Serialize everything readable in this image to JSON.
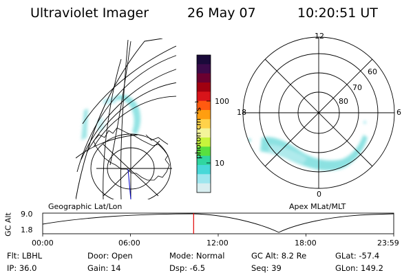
{
  "header": {
    "instrument": "Ultraviolet Imager",
    "date": "26 May 07",
    "time": "10:20:51 UT"
  },
  "colorbar": {
    "unit_label": "photon cm⁻²s⁻¹",
    "ticks": [
      "100",
      "10"
    ],
    "colors": [
      "#1a0a3a",
      "#3b0a4a",
      "#6b0030",
      "#a00010",
      "#d8141a",
      "#ff5a10",
      "#ff9e10",
      "#ffd24a",
      "#f4f49a",
      "#c8f43c",
      "#58e040",
      "#30d6a0",
      "#48d8d8",
      "#9ee6ee",
      "#d8eef0"
    ]
  },
  "geo_panel": {
    "label": "Geographic Lat/Lon"
  },
  "polar_panel": {
    "label": "Apex MLat/MLT",
    "mlt_labels": {
      "top": "12",
      "left": "18",
      "right": "6",
      "bottom": "0"
    },
    "lat_labels": [
      "60",
      "70",
      "80"
    ]
  },
  "altitude_plot": {
    "ylabel": "GC Alt",
    "yticks": [
      "9.0",
      "1.8"
    ],
    "xticks": [
      "00:00",
      "06:00",
      "12:00",
      "18:00",
      "23:59"
    ],
    "current_time_fraction": 0.43
  },
  "status": {
    "filter": "Flt: LBHL",
    "ip": "IP: 36.0",
    "door": "Door: Open",
    "gain": "Gain: 14",
    "mode": "Mode: Normal",
    "dsp": "Dsp:    -6.5",
    "gc_alt": "GC Alt: 8.2 Re",
    "seq": "Seq: 39",
    "glat": "GLat: -57.4",
    "glon": "GLon: 149.2"
  }
}
